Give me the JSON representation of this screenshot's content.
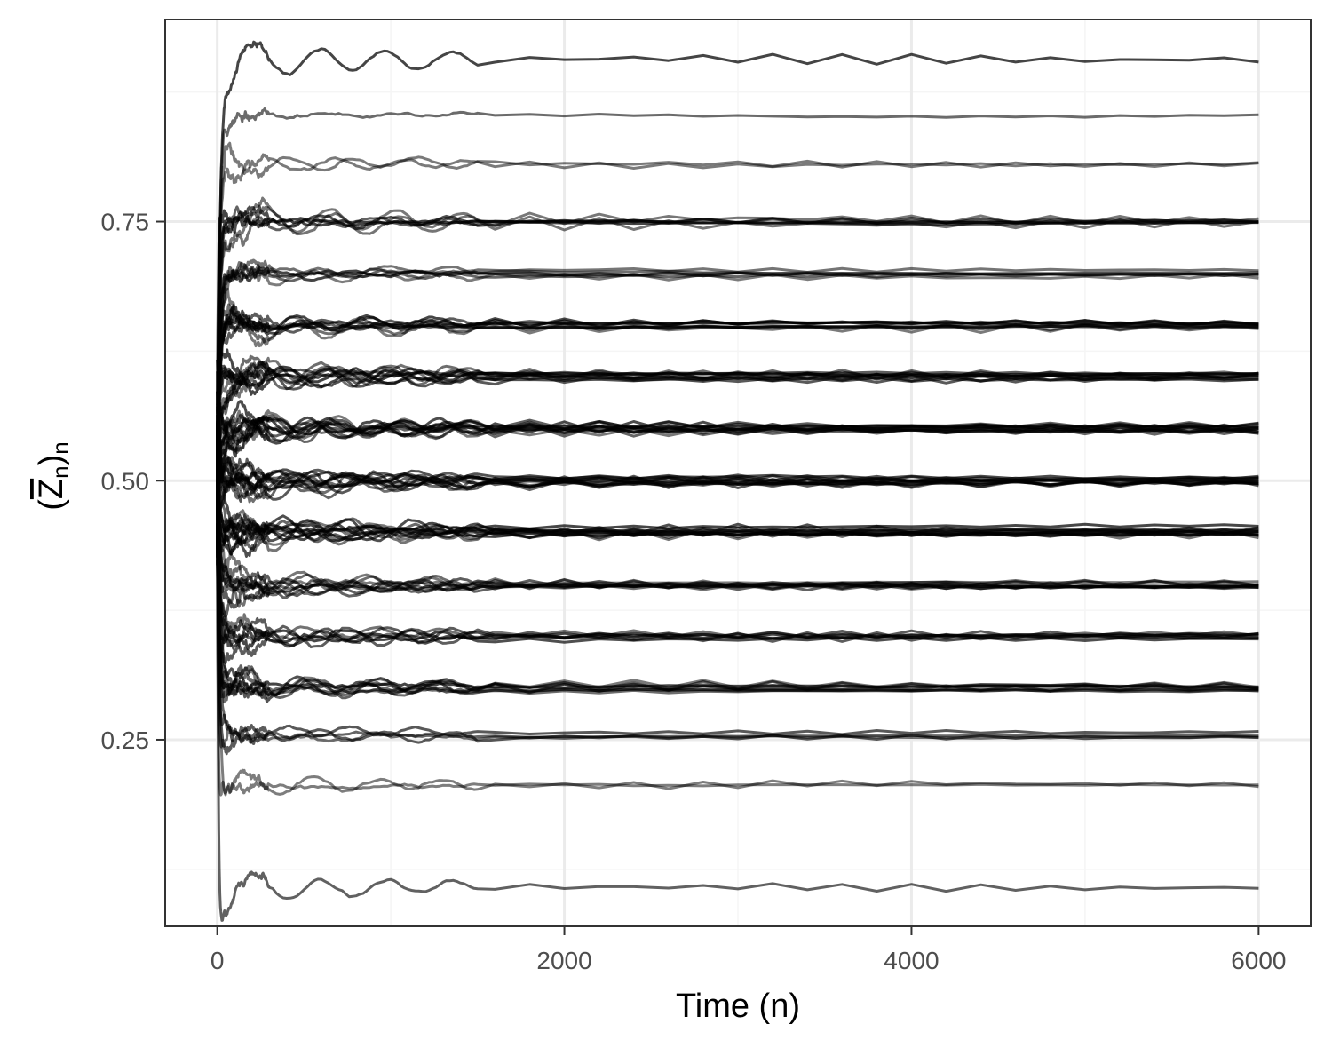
{
  "chart_data": {
    "type": "line",
    "title": "",
    "xlabel": "Time (n)",
    "ylabel_parts": {
      "open": "(",
      "var": "Z",
      "sub1": "n",
      "close": ")",
      "sub2": "n"
    },
    "xlim": [
      -300,
      6300
    ],
    "ylim": [
      0.07,
      0.945
    ],
    "x_ticks": [
      0,
      2000,
      4000,
      6000
    ],
    "x_tick_labels": [
      "0",
      "2000",
      "4000",
      "6000"
    ],
    "y_ticks": [
      0.25,
      0.5,
      0.75
    ],
    "y_tick_labels": [
      "0.25",
      "0.50",
      "0.75"
    ],
    "y_minor_ticks": [
      0.125,
      0.375,
      0.625,
      0.875
    ],
    "x_minor_ticks": [
      1000,
      3000,
      5000
    ],
    "grid": true,
    "x_end": 6000,
    "line_color": "#000000",
    "series_note": "many sample paths; start near 0.5 and converge to a final level",
    "level_groups": [
      {
        "final": 0.905,
        "count": 1
      },
      {
        "final": 0.855,
        "count": 1
      },
      {
        "final": 0.805,
        "count": 2
      },
      {
        "final": 0.75,
        "count": 6
      },
      {
        "final": 0.7,
        "count": 6
      },
      {
        "final": 0.65,
        "count": 9
      },
      {
        "final": 0.6,
        "count": 10
      },
      {
        "final": 0.55,
        "count": 12
      },
      {
        "final": 0.5,
        "count": 12
      },
      {
        "final": 0.455,
        "count": 1
      },
      {
        "final": 0.45,
        "count": 11
      },
      {
        "final": 0.4,
        "count": 9
      },
      {
        "final": 0.35,
        "count": 7
      },
      {
        "final": 0.3,
        "count": 8
      },
      {
        "final": 0.255,
        "count": 4
      },
      {
        "final": 0.205,
        "count": 2
      },
      {
        "final": 0.11,
        "count": 1
      }
    ]
  },
  "colors": {
    "panel_border": "#333333",
    "grid_major": "#ebebeb",
    "grid_minor": "#f5f5f5",
    "tick_label": "#4d4d4d",
    "axis_title": "#000000"
  }
}
